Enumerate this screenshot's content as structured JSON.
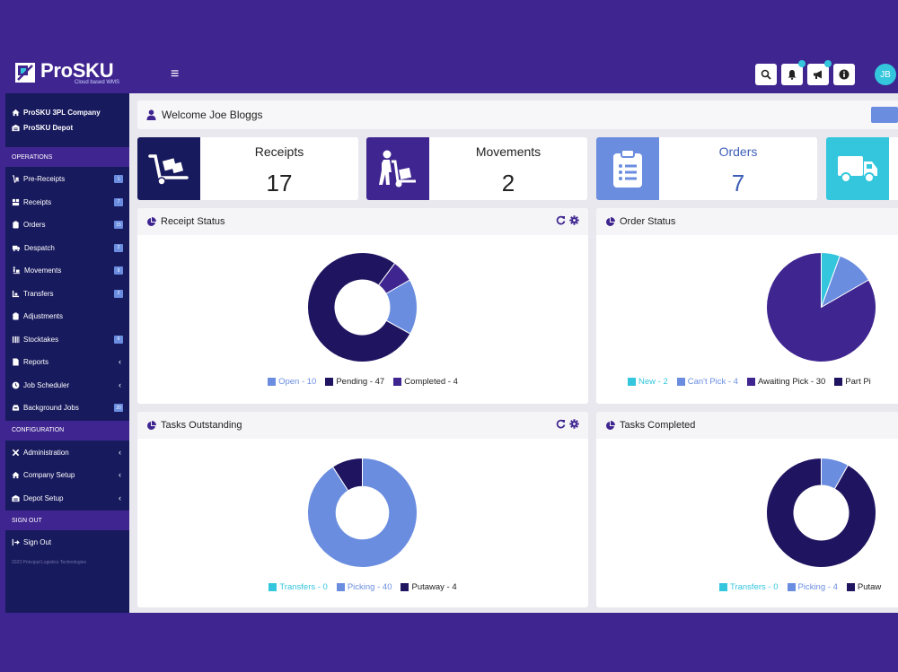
{
  "app": {
    "name_pro": "Pro",
    "name_sku": "SKU",
    "tagline": "Cloud based WMS",
    "avatar_initials": "JB"
  },
  "sidebar": {
    "company": "ProSKU 3PL Company",
    "depot": "ProSKU Depot",
    "sections": {
      "operations": "OPERATIONS",
      "configuration": "CONFIGURATION",
      "signout": "SIGN OUT"
    },
    "operations": [
      {
        "label": "Pre-Receipts",
        "badge": "1"
      },
      {
        "label": "Receipts",
        "badge": "7"
      },
      {
        "label": "Orders",
        "badge": "15"
      },
      {
        "label": "Despatch",
        "badge": "2"
      },
      {
        "label": "Movements",
        "badge": "9"
      },
      {
        "label": "Transfers",
        "badge": "2"
      },
      {
        "label": "Adjustments",
        "badge": ""
      },
      {
        "label": "Stocktakes",
        "badge": "6"
      },
      {
        "label": "Reports",
        "badge": ""
      },
      {
        "label": "Job Scheduler",
        "badge": ""
      },
      {
        "label": "Background Jobs",
        "badge": "20"
      }
    ],
    "configuration": [
      {
        "label": "Administration"
      },
      {
        "label": "Company Setup"
      },
      {
        "label": "Depot Setup"
      }
    ],
    "sign_out": "Sign Out",
    "copyright": "2023 Principal Logistics Technologies"
  },
  "welcome": "Welcome Joe Bloggs",
  "stats": [
    {
      "title": "Receipts",
      "value": "17",
      "icon": "dolly-icon",
      "color": "#181a5e"
    },
    {
      "title": "Movements",
      "value": "2",
      "icon": "person-dolly-icon",
      "color": "#3f2590"
    },
    {
      "title": "Orders",
      "value": "7",
      "icon": "clipboard-icon",
      "color": "#6a8de0"
    },
    {
      "title": "",
      "value": "",
      "icon": "truck-icon",
      "color": "#33c6dd"
    }
  ],
  "panels": {
    "receipt_status": {
      "title": "Receipt Status",
      "legend": [
        {
          "label": "Open - 10",
          "value": 10,
          "color": "#6a8de0"
        },
        {
          "label": "Pending - 47",
          "value": 47,
          "color": "#1f1460"
        },
        {
          "label": "Completed - 4",
          "value": 4,
          "color": "#3f2590"
        }
      ]
    },
    "order_status": {
      "title": "Order Status",
      "legend": [
        {
          "label": "New - 2",
          "value": 2,
          "color": "#33c6dd"
        },
        {
          "label": "Can't Pick - 4",
          "value": 4,
          "color": "#6a8de0"
        },
        {
          "label": "Awaiting Pick - 30",
          "value": 30,
          "color": "#3f2590"
        },
        {
          "label": "Part Pi",
          "value": 0,
          "color": "#1f1460"
        }
      ]
    },
    "tasks_outstanding": {
      "title": "Tasks Outstanding",
      "legend": [
        {
          "label": "Transfers - 0",
          "value": 0,
          "color": "#33c6dd"
        },
        {
          "label": "Picking - 40",
          "value": 40,
          "color": "#6a8de0"
        },
        {
          "label": "Putaway - 4",
          "value": 4,
          "color": "#1f1460"
        }
      ]
    },
    "tasks_completed": {
      "title": "Tasks Completed",
      "legend": [
        {
          "label": "Transfers - 0",
          "value": 0,
          "color": "#33c6dd"
        },
        {
          "label": "Picking - 4",
          "value": 4,
          "color": "#6a8de0"
        },
        {
          "label": "Putaw",
          "value": 0,
          "color": "#1f1460"
        }
      ]
    }
  }
}
